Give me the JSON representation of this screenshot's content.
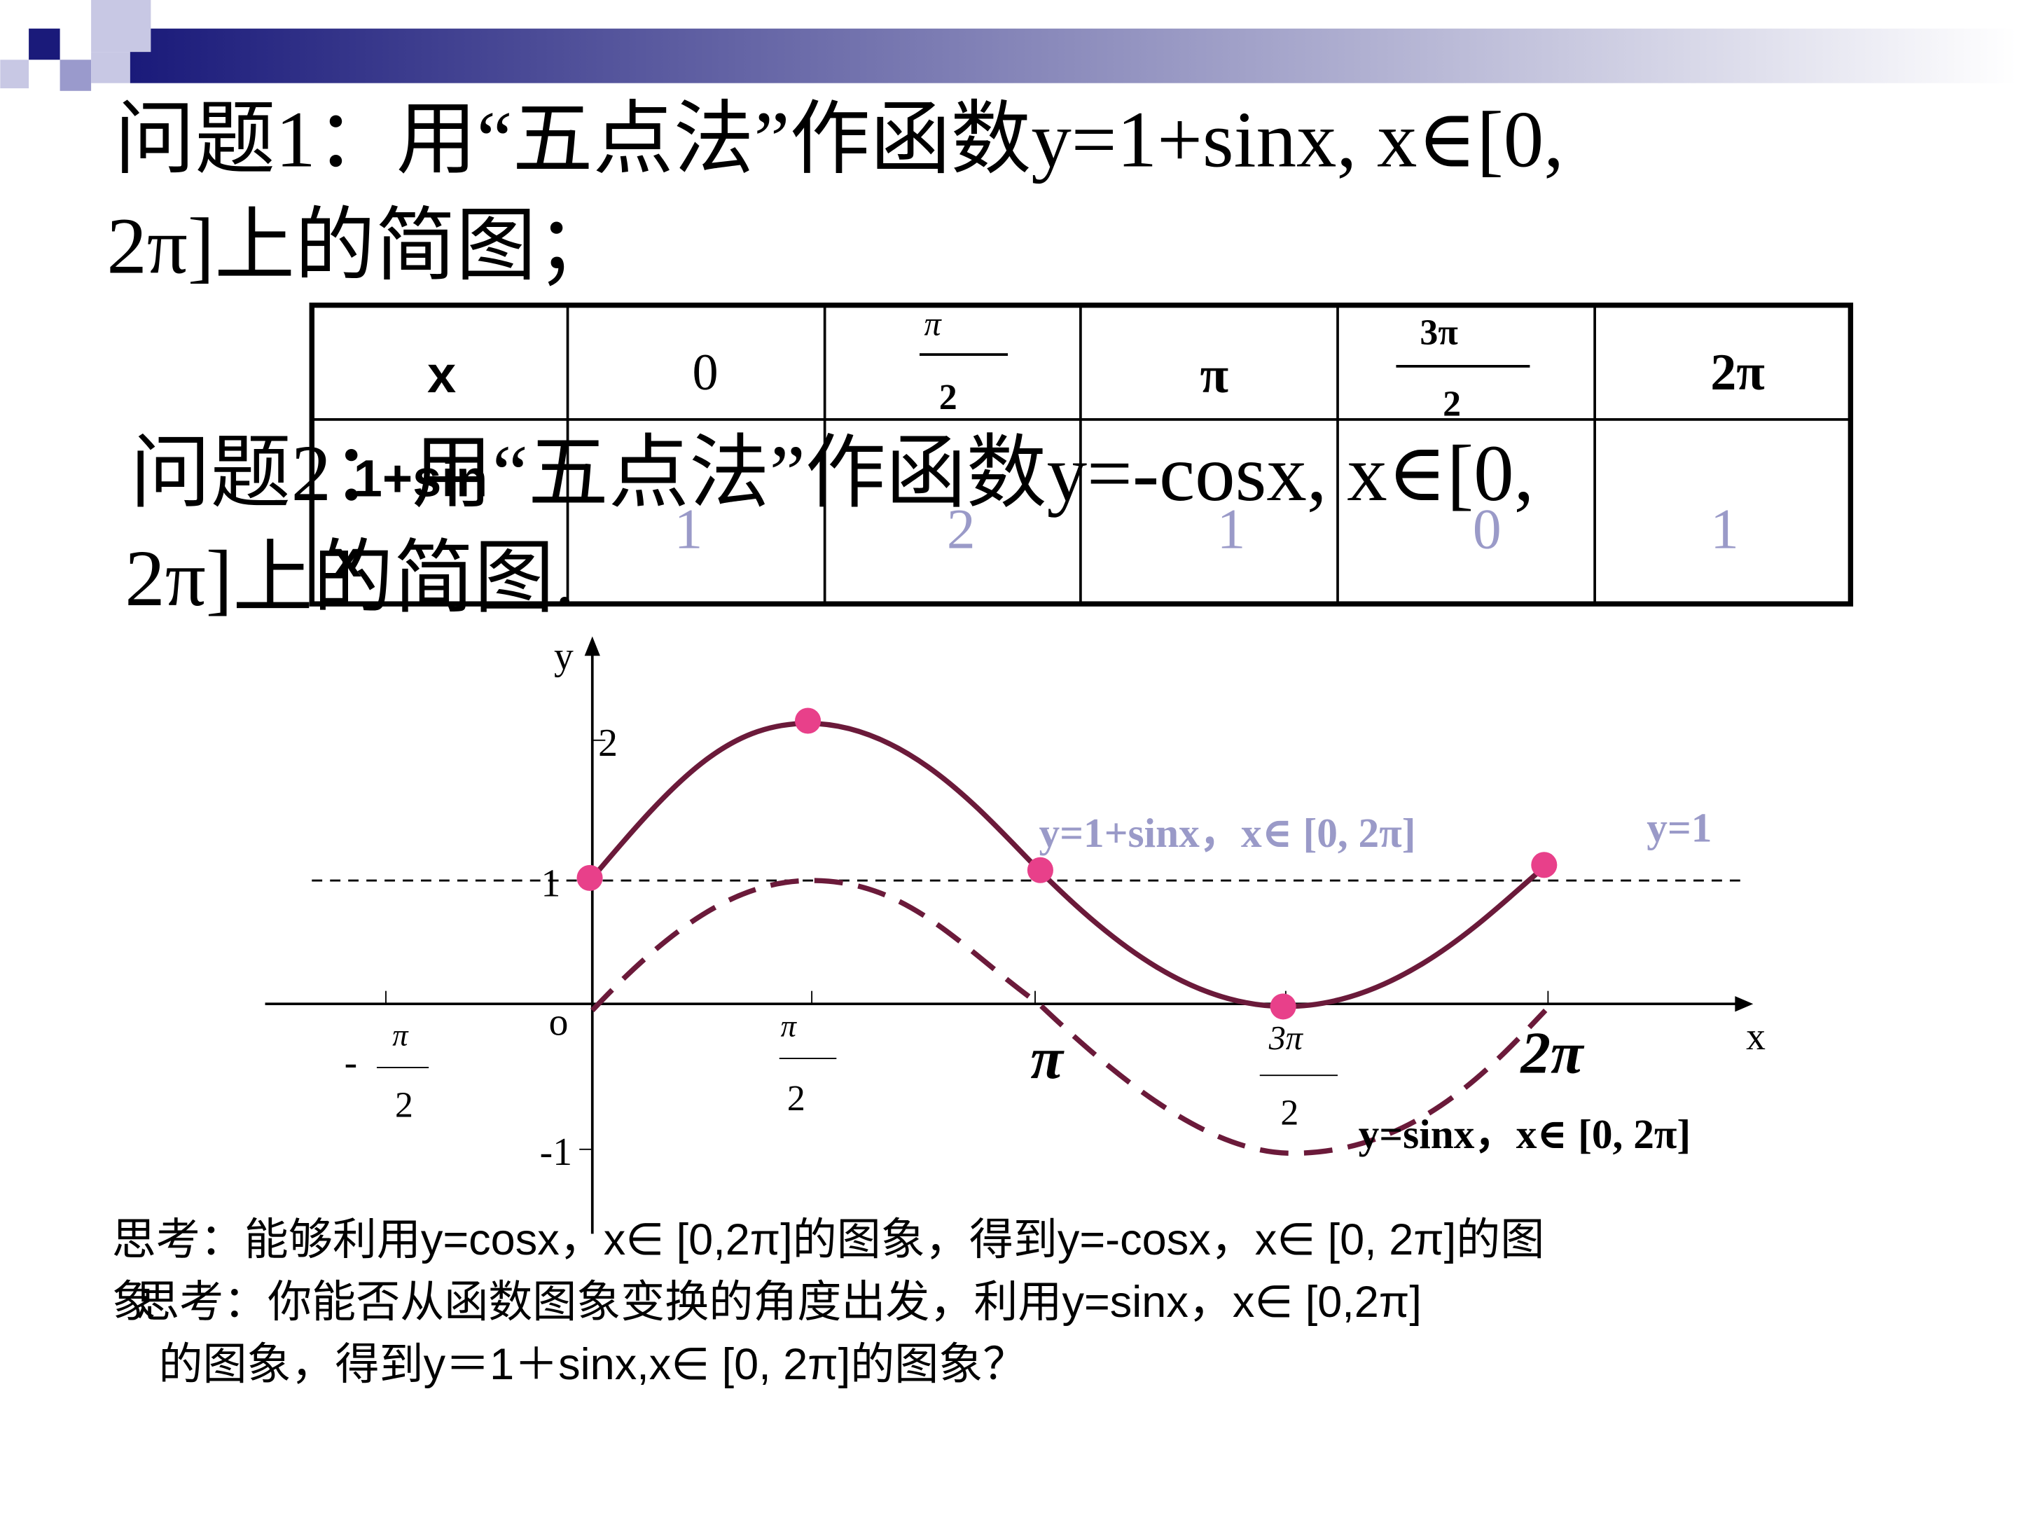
{
  "problem1": {
    "line1": "问题1：用“五点法”作函数y=1+sinx,  x∈[0,",
    "line2": "2π]上的简图；"
  },
  "problem2": {
    "line1": "问题2：用“五点法”作函数y=-cosx,  x∈[0,",
    "line2": "2π]上的简图."
  },
  "table": {
    "header": {
      "label": "x",
      "c0": "0",
      "c1": {
        "num": "π",
        "den": "2"
      },
      "c2": "π",
      "c3": {
        "num": "3π",
        "den": "2"
      },
      "c4": "2π"
    },
    "row": {
      "label1": "1+sin",
      "label2": "x",
      "values": [
        "1",
        "2",
        "1",
        "0",
        "1"
      ]
    }
  },
  "graph": {
    "y_axis": "y",
    "x_axis": "x",
    "origin": "o",
    "y_ticks": [
      "2",
      "1",
      "-1"
    ],
    "x_ticks": [
      {
        "sign": "-",
        "num": "π",
        "den": "2"
      },
      {
        "num": "π",
        "den": "2"
      },
      {
        "text": "π"
      },
      {
        "num": "3π",
        "den": "2"
      },
      {
        "text": "2π"
      }
    ],
    "curve1_label": "y=1+sinx，x∈ [0, 2π]",
    "line_label": "y=1",
    "curve2_label": "y=sinx，x∈ [0, 2π]"
  },
  "thinking": {
    "line1": "思考：能够利用y=cosx，x∈ [0,2π]的图象，得到y=-cosx，x∈ [0, 2π]的图",
    "line2a": "象",
    "line2b": "思考：你能否从函数图象变换的角度出发，利用y=sinx，x∈ [0,2π]",
    "line3": "的图象，得到y＝1＋sinx,x∈ [0, 2π]的图象？"
  }
}
